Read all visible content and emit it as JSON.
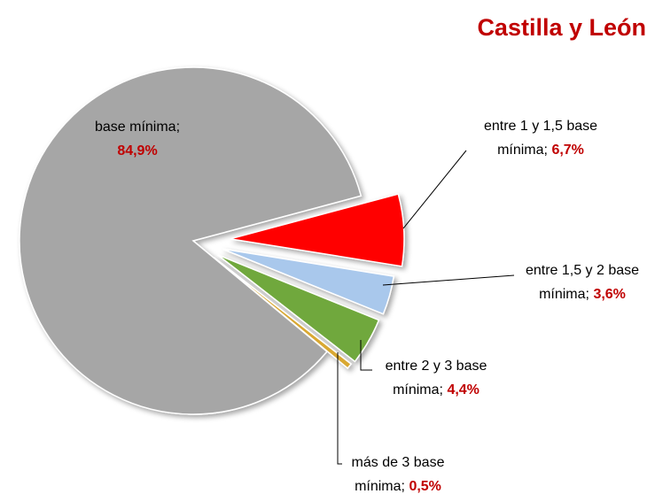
{
  "chart_data": {
    "type": "pie",
    "title": "Castilla y León",
    "categories": [
      "base mínima",
      "entre 1 y 1,5 base mínima",
      "entre 1,5 y 2 base mínima",
      "entre 2 y 3 base mínima",
      "más de 3 base mínima"
    ],
    "values": [
      84.9,
      6.7,
      3.6,
      4.4,
      0.5
    ],
    "value_labels": [
      "84,9%",
      "6,7%",
      "3,6%",
      "4,4%",
      "0,5%"
    ],
    "label_separator": ";",
    "colors": [
      "#a6a6a6",
      "#ff0000",
      "#a9c8ec",
      "#70a83c",
      "#d9a830"
    ]
  }
}
